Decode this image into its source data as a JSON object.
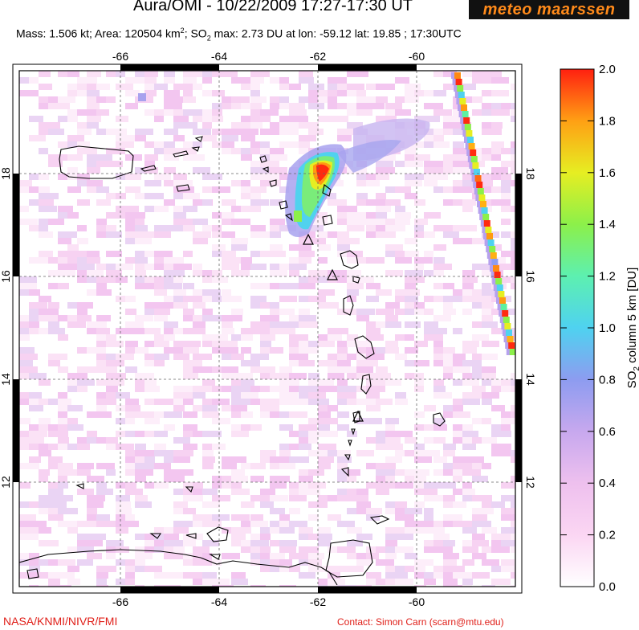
{
  "header": {
    "title": "Aura/OMI - 10/22/2009 17:27-17:30 UT",
    "logo_text": "meteo maarssen",
    "subtitle_parts": {
      "mass": "Mass: 1.506 kt; Area: 120504 km",
      "area_sup": "2",
      "so2": "; SO",
      "so2_sub": "2",
      "rest": " max: 2.73 DU at lon: -59.12 lat: 19.85 ; 17:30UTC"
    }
  },
  "map": {
    "lon_ticks": [
      "-66",
      "-64",
      "-62",
      "-60"
    ],
    "lat_ticks": [
      "18",
      "16",
      "14",
      "12"
    ],
    "volcano_icon": "triangle-volcano-icon"
  },
  "colorbar": {
    "ticks": [
      "2.0",
      "1.8",
      "1.6",
      "1.4",
      "1.2",
      "1.0",
      "0.8",
      "0.6",
      "0.4",
      "0.2",
      "0.0"
    ],
    "label_main": "SO",
    "label_sub": "2",
    "label_rest": " column 5 km [DU]",
    "colors": [
      "#ffffff",
      "#fbd6f3",
      "#e9b2ee",
      "#b5a1ee",
      "#8d9cf0",
      "#4fd2f0",
      "#5df0a0",
      "#8cf04a",
      "#e6ee22",
      "#ff9a12",
      "#ff2a10"
    ]
  },
  "footer": {
    "left": "NASA/KNMI/NIVR/FMI",
    "right": "Contact: Simon Carn (scarn@mtu.edu)"
  }
}
